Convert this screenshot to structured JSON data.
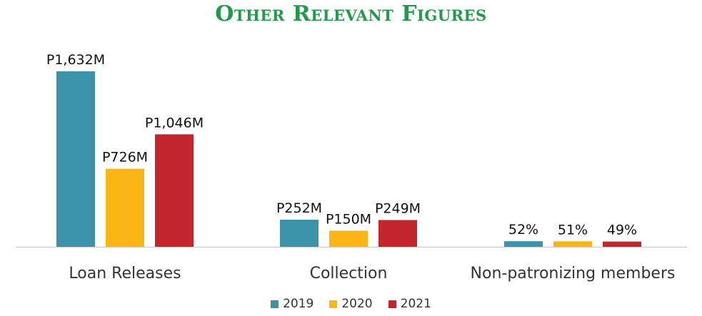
{
  "title": "Other Relevant Figures",
  "colors": {
    "title": "#1f9b4a",
    "2019": "#3a93a8",
    "2020": "#fbb614",
    "2021": "#c3262d"
  },
  "chart_data": {
    "type": "bar",
    "title": "Other Relevant Figures",
    "categories": [
      "Loan Releases",
      "Collection",
      "Non-patronizing members"
    ],
    "series": [
      {
        "name": "2019",
        "values": [
          1632,
          252,
          52
        ],
        "labels": [
          "P1,632M",
          "P252M",
          "52%"
        ],
        "color": "#3a93a8"
      },
      {
        "name": "2020",
        "values": [
          726,
          150,
          51
        ],
        "labels": [
          "P726M",
          "P150M",
          "51%"
        ],
        "color": "#fbb614"
      },
      {
        "name": "2021",
        "values": [
          1046,
          249,
          49
        ],
        "labels": [
          "P1,046M",
          "P249M",
          "49%"
        ],
        "color": "#c3262d"
      }
    ],
    "ylim": [
      0,
      1632
    ],
    "grid": false,
    "legend": "bottom",
    "xlabel": "",
    "ylabel": ""
  }
}
